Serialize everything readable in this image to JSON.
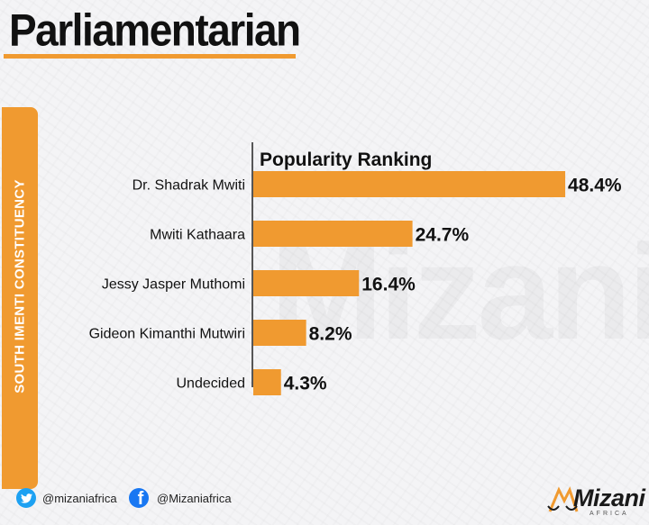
{
  "header": {
    "title": "Parliamentarian"
  },
  "sidebar": {
    "label": "SOUTH IMENTI CONSTITUENCY"
  },
  "chart_data": {
    "type": "bar",
    "orientation": "horizontal",
    "title": "Popularity Ranking",
    "categories": [
      "Dr. Shadrak Mwiti",
      "Mwiti Kathaara",
      "Jessy Jasper Muthomi",
      "Gideon Kimanthi Mutwiri",
      "Undecided"
    ],
    "values": [
      48.4,
      24.7,
      16.4,
      8.2,
      4.3
    ],
    "value_labels": [
      "48.4%",
      "24.7%",
      "16.4%",
      "8.2%",
      "4.3%"
    ],
    "xlim": [
      0,
      50
    ],
    "grid": false,
    "legend": "none",
    "bar_color": "#f09a30"
  },
  "watermark": {
    "text": "Mizani"
  },
  "footer": {
    "twitter": {
      "icon": "twitter-icon",
      "handle": "@mizaniafrica",
      "color": "#1da1f2"
    },
    "facebook": {
      "icon": "facebook-icon",
      "handle": "@Mizaniafrica",
      "color": "#1877f2"
    }
  },
  "brand": {
    "name": "Mizani",
    "sub": "AFRICA",
    "accent": "#f09a30"
  }
}
